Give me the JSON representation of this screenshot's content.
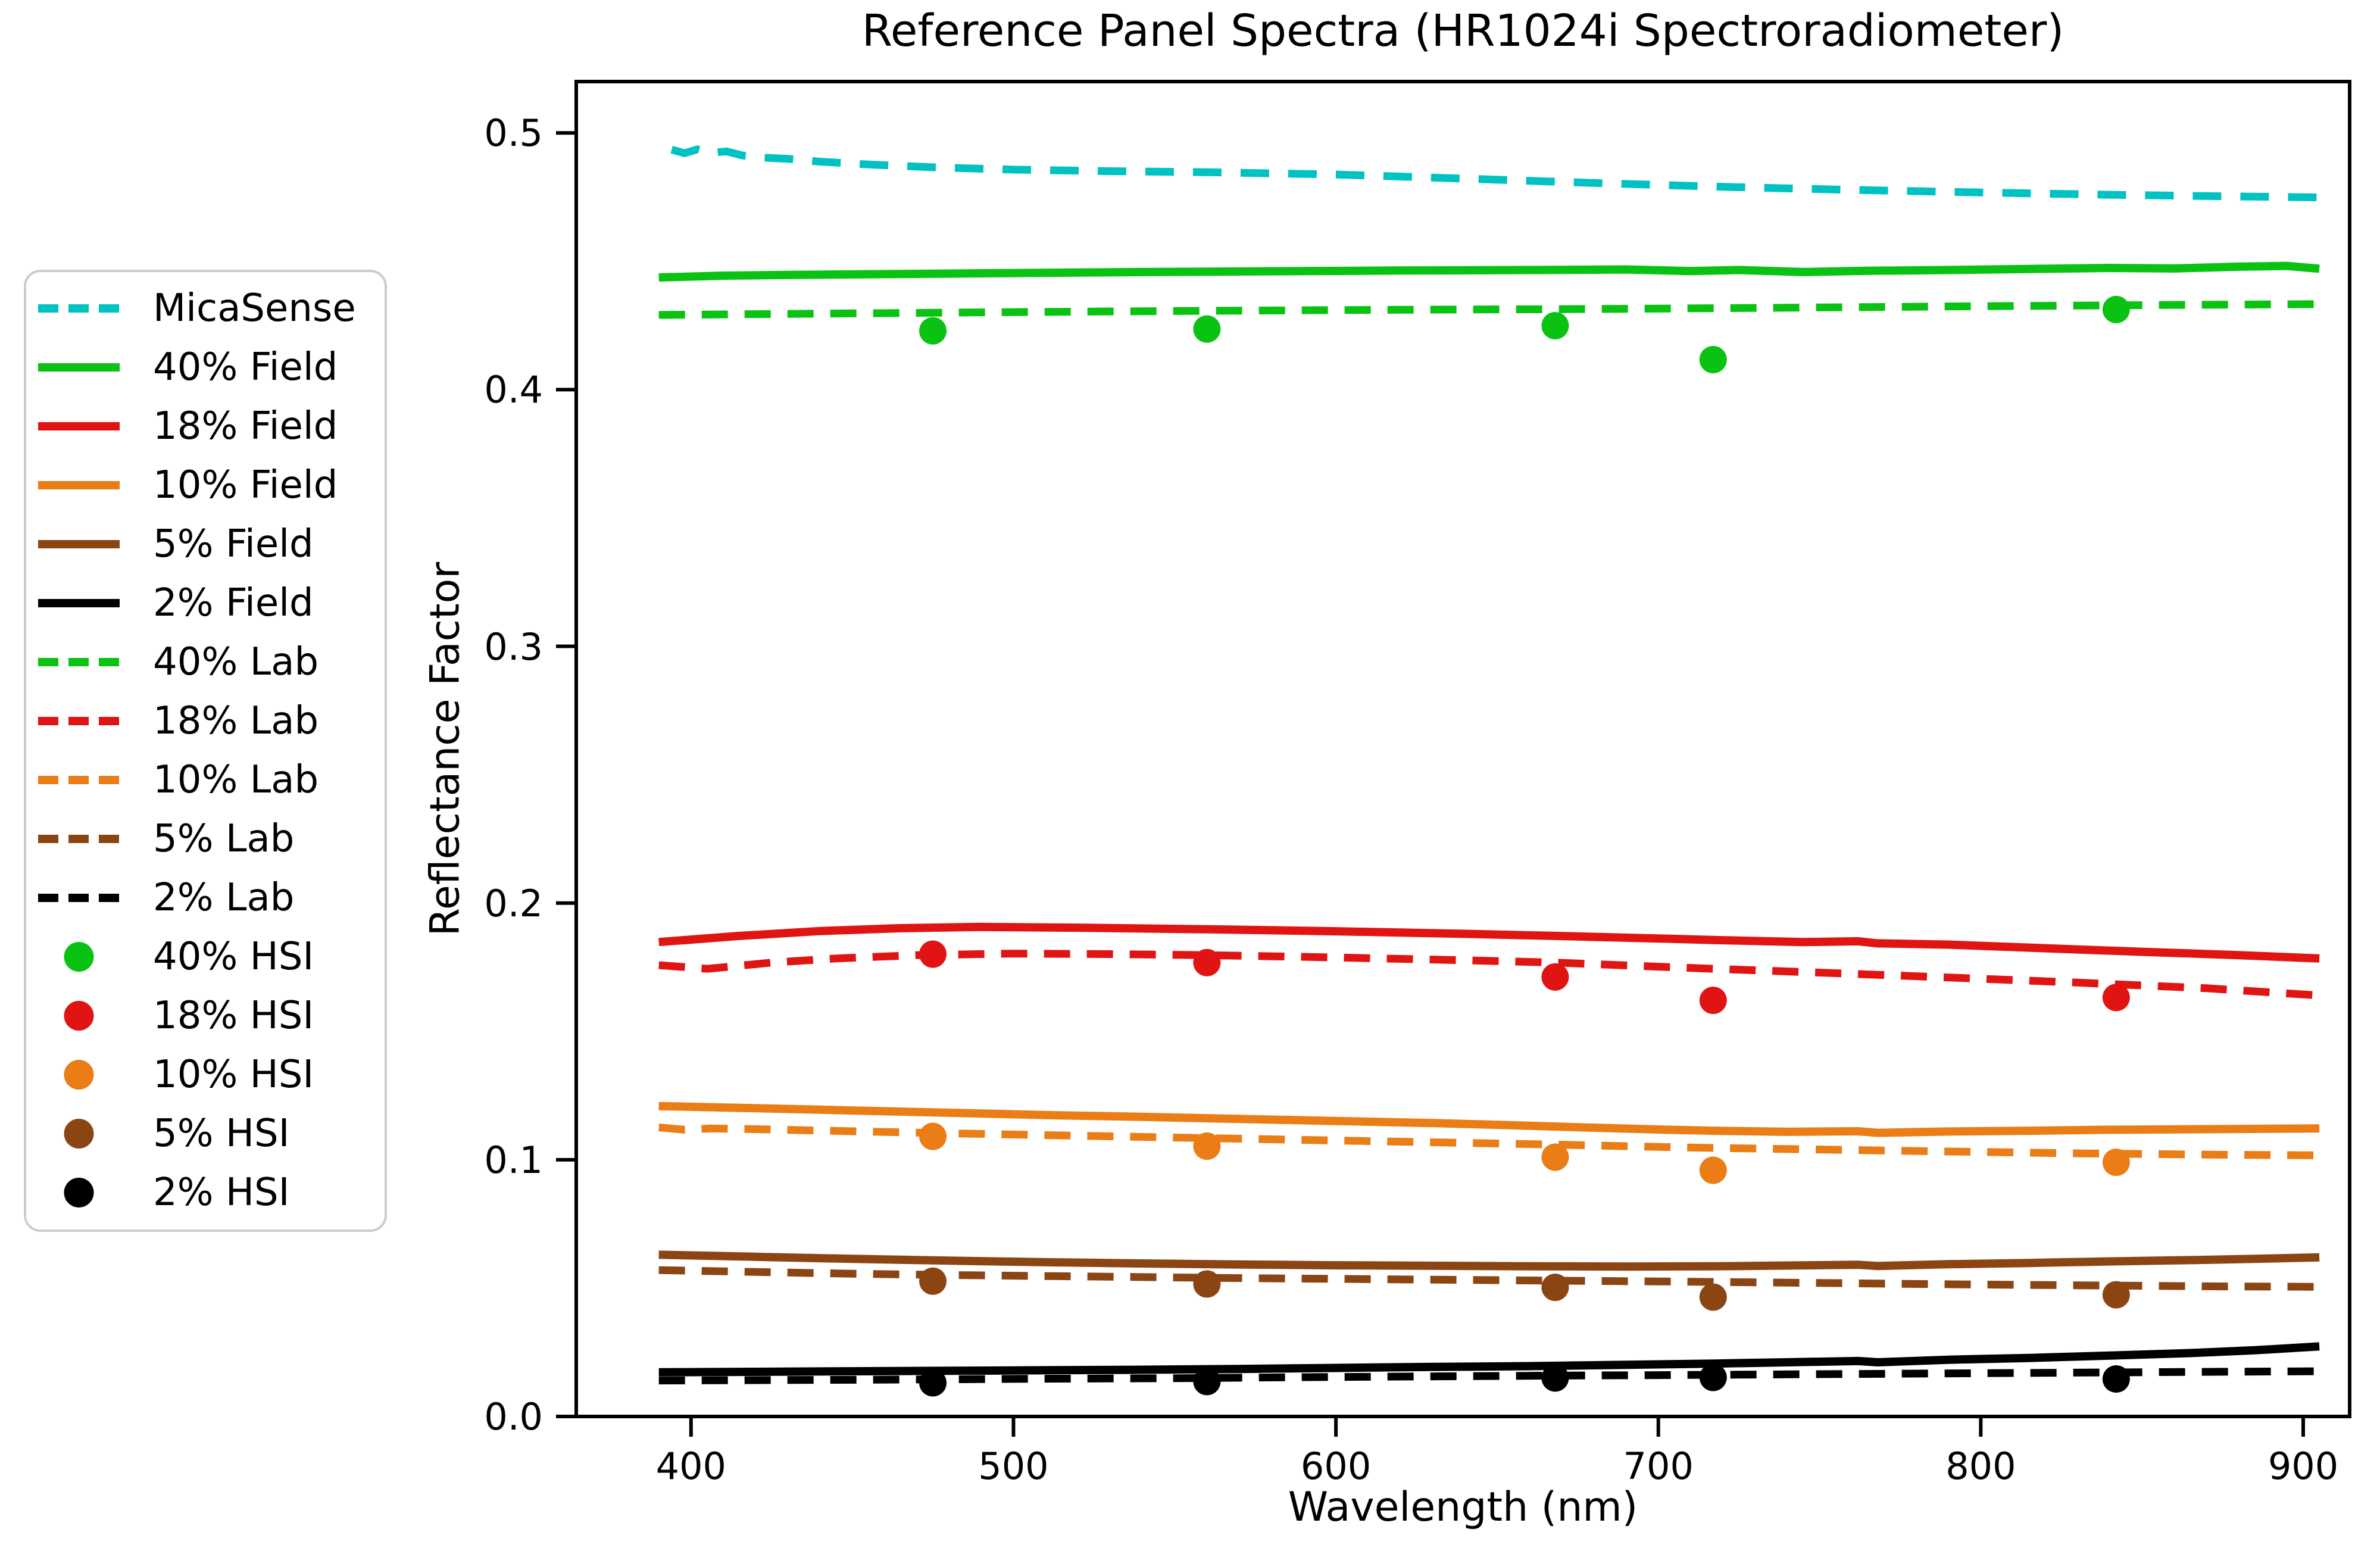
{
  "chart_data": {
    "type": "line",
    "title": "Reference Panel Spectra (HR1024i Spectroradiometer)",
    "xlabel": "Wavelength (nm)",
    "ylabel": "Reflectance Factor",
    "x_range": [
      364.4,
      914.4
    ],
    "y_range": [
      0,
      0.52
    ],
    "grid": false,
    "legend_position": "outside-left",
    "x_axis": {
      "tick_values": [
        400,
        500,
        600,
        700,
        800,
        900
      ],
      "tick_labels": [
        "400",
        "500",
        "600",
        "700",
        "800",
        "900"
      ]
    },
    "y_axis": {
      "tick_values": [
        0.0,
        0.1,
        0.2,
        0.3,
        0.4,
        0.5
      ],
      "tick_labels": [
        "0.0",
        "0.1",
        "0.2",
        "0.3",
        "0.4",
        "0.5"
      ]
    },
    "colors": {
      "micasense_cyan": "#00c2c2",
      "green_40pct": "#0ac212",
      "red_18pct": "#e11414",
      "orange_10pct": "#ea7d15",
      "brown_5pct": "#8b4513",
      "black_2pct": "#000000"
    },
    "series": [
      {
        "name": "MicaSense",
        "style": "dashed",
        "color": "#00c2c2",
        "points": [
          [
            394,
            0.4935
          ],
          [
            398,
            0.4921
          ],
          [
            402,
            0.4936
          ],
          [
            406,
            0.4922
          ],
          [
            411,
            0.4928
          ],
          [
            416,
            0.4912
          ],
          [
            422,
            0.4904
          ],
          [
            430,
            0.4899
          ],
          [
            440,
            0.4888
          ],
          [
            455,
            0.4877
          ],
          [
            475,
            0.4866
          ],
          [
            500,
            0.4857
          ],
          [
            530,
            0.4851
          ],
          [
            560,
            0.4847
          ],
          [
            600,
            0.4838
          ],
          [
            640,
            0.4822
          ],
          [
            680,
            0.4805
          ],
          [
            720,
            0.479
          ],
          [
            760,
            0.4778
          ],
          [
            800,
            0.4768
          ],
          [
            840,
            0.4759
          ],
          [
            870,
            0.4754
          ],
          [
            905,
            0.4749
          ]
        ]
      },
      {
        "name": "40% Field",
        "style": "solid",
        "color": "#0ac212",
        "points": [
          [
            390,
            0.4437
          ],
          [
            410,
            0.4444
          ],
          [
            430,
            0.4447
          ],
          [
            460,
            0.445
          ],
          [
            500,
            0.4454
          ],
          [
            540,
            0.4458
          ],
          [
            580,
            0.4461
          ],
          [
            620,
            0.4464
          ],
          [
            660,
            0.4466
          ],
          [
            690,
            0.4468
          ],
          [
            710,
            0.4462
          ],
          [
            725,
            0.4466
          ],
          [
            745,
            0.4458
          ],
          [
            765,
            0.4463
          ],
          [
            790,
            0.4466
          ],
          [
            815,
            0.447
          ],
          [
            840,
            0.4474
          ],
          [
            860,
            0.4472
          ],
          [
            880,
            0.4479
          ],
          [
            895,
            0.4482
          ],
          [
            905,
            0.4471
          ]
        ]
      },
      {
        "name": "18% Field",
        "style": "solid",
        "color": "#e11414",
        "points": [
          [
            390,
            0.1848
          ],
          [
            415,
            0.1872
          ],
          [
            440,
            0.1891
          ],
          [
            465,
            0.1902
          ],
          [
            490,
            0.1907
          ],
          [
            520,
            0.1904
          ],
          [
            560,
            0.1898
          ],
          [
            600,
            0.189
          ],
          [
            640,
            0.188
          ],
          [
            668,
            0.1872
          ],
          [
            700,
            0.1862
          ],
          [
            717,
            0.1856
          ],
          [
            745,
            0.1848
          ],
          [
            762,
            0.1851
          ],
          [
            768,
            0.1843
          ],
          [
            790,
            0.1838
          ],
          [
            820,
            0.1824
          ],
          [
            850,
            0.181
          ],
          [
            880,
            0.1797
          ],
          [
            905,
            0.1784
          ]
        ]
      },
      {
        "name": "10% Field",
        "style": "solid",
        "color": "#ea7d15",
        "points": [
          [
            390,
            0.1209
          ],
          [
            420,
            0.1201
          ],
          [
            450,
            0.1192
          ],
          [
            480,
            0.1183
          ],
          [
            510,
            0.1174
          ],
          [
            540,
            0.1167
          ],
          [
            570,
            0.1159
          ],
          [
            600,
            0.1151
          ],
          [
            630,
            0.1143
          ],
          [
            656,
            0.1134
          ],
          [
            680,
            0.1125
          ],
          [
            700,
            0.1118
          ],
          [
            717,
            0.1113
          ],
          [
            740,
            0.1109
          ],
          [
            762,
            0.1111
          ],
          [
            768,
            0.1105
          ],
          [
            790,
            0.111
          ],
          [
            815,
            0.1113
          ],
          [
            840,
            0.1117
          ],
          [
            870,
            0.1119
          ],
          [
            905,
            0.1122
          ]
        ]
      },
      {
        "name": "5% Field",
        "style": "solid",
        "color": "#8b4513",
        "points": [
          [
            390,
            0.063
          ],
          [
            420,
            0.0622
          ],
          [
            450,
            0.0614
          ],
          [
            480,
            0.0607
          ],
          [
            510,
            0.0601
          ],
          [
            540,
            0.0596
          ],
          [
            570,
            0.0592
          ],
          [
            600,
            0.0589
          ],
          [
            630,
            0.0587
          ],
          [
            660,
            0.0585
          ],
          [
            690,
            0.0584
          ],
          [
            717,
            0.0585
          ],
          [
            740,
            0.0588
          ],
          [
            762,
            0.0591
          ],
          [
            768,
            0.0586
          ],
          [
            790,
            0.0593
          ],
          [
            815,
            0.0598
          ],
          [
            840,
            0.0604
          ],
          [
            865,
            0.0609
          ],
          [
            885,
            0.0614
          ],
          [
            905,
            0.062
          ]
        ]
      },
      {
        "name": "2% Field",
        "style": "solid",
        "color": "#000000",
        "points": [
          [
            390,
            0.0172
          ],
          [
            420,
            0.0174
          ],
          [
            450,
            0.0176
          ],
          [
            480,
            0.0178
          ],
          [
            510,
            0.018
          ],
          [
            540,
            0.0182
          ],
          [
            570,
            0.0185
          ],
          [
            600,
            0.0189
          ],
          [
            630,
            0.0193
          ],
          [
            660,
            0.0196
          ],
          [
            690,
            0.0201
          ],
          [
            717,
            0.0206
          ],
          [
            740,
            0.0211
          ],
          [
            762,
            0.0216
          ],
          [
            768,
            0.0211
          ],
          [
            790,
            0.0221
          ],
          [
            815,
            0.0228
          ],
          [
            840,
            0.0237
          ],
          [
            865,
            0.0247
          ],
          [
            885,
            0.0258
          ],
          [
            905,
            0.0273
          ]
        ]
      },
      {
        "name": "40% Lab",
        "style": "dashed",
        "color": "#0ac212",
        "points": [
          [
            390,
            0.4291
          ],
          [
            440,
            0.4296
          ],
          [
            500,
            0.4302
          ],
          [
            560,
            0.4307
          ],
          [
            620,
            0.4311
          ],
          [
            680,
            0.4314
          ],
          [
            740,
            0.4319
          ],
          [
            800,
            0.4325
          ],
          [
            860,
            0.433
          ],
          [
            905,
            0.4333
          ]
        ]
      },
      {
        "name": "18% Lab",
        "style": "dashed",
        "color": "#e11414",
        "points": [
          [
            390,
            0.1758
          ],
          [
            405,
            0.1744
          ],
          [
            412,
            0.1752
          ],
          [
            425,
            0.1768
          ],
          [
            445,
            0.1784
          ],
          [
            470,
            0.1797
          ],
          [
            500,
            0.1803
          ],
          [
            530,
            0.1801
          ],
          [
            560,
            0.1797
          ],
          [
            600,
            0.1788
          ],
          [
            640,
            0.1777
          ],
          [
            668,
            0.1768
          ],
          [
            700,
            0.1752
          ],
          [
            717,
            0.1744
          ],
          [
            750,
            0.1729
          ],
          [
            790,
            0.171
          ],
          [
            830,
            0.169
          ],
          [
            870,
            0.1668
          ],
          [
            905,
            0.164
          ]
        ]
      },
      {
        "name": "10% Lab",
        "style": "dashed",
        "color": "#ea7d15",
        "points": [
          [
            390,
            0.1126
          ],
          [
            398,
            0.1117
          ],
          [
            406,
            0.1122
          ],
          [
            420,
            0.1119
          ],
          [
            450,
            0.1111
          ],
          [
            480,
            0.1103
          ],
          [
            510,
            0.1096
          ],
          [
            540,
            0.1089
          ],
          [
            570,
            0.1082
          ],
          [
            600,
            0.1075
          ],
          [
            630,
            0.1068
          ],
          [
            668,
            0.1059
          ],
          [
            700,
            0.105
          ],
          [
            717,
            0.1046
          ],
          [
            750,
            0.104
          ],
          [
            790,
            0.1032
          ],
          [
            830,
            0.1025
          ],
          [
            870,
            0.102
          ],
          [
            905,
            0.1017
          ]
        ]
      },
      {
        "name": "5% Lab",
        "style": "dashed",
        "color": "#8b4513",
        "points": [
          [
            390,
            0.057
          ],
          [
            420,
            0.0563
          ],
          [
            450,
            0.0556
          ],
          [
            480,
            0.0551
          ],
          [
            510,
            0.0547
          ],
          [
            540,
            0.0543
          ],
          [
            570,
            0.0539
          ],
          [
            600,
            0.0536
          ],
          [
            630,
            0.0533
          ],
          [
            668,
            0.0529
          ],
          [
            700,
            0.0526
          ],
          [
            717,
            0.0524
          ],
          [
            750,
            0.052
          ],
          [
            790,
            0.0515
          ],
          [
            830,
            0.0511
          ],
          [
            870,
            0.0507
          ],
          [
            905,
            0.0505
          ]
        ]
      },
      {
        "name": "2% Lab",
        "style": "dashed",
        "color": "#000000",
        "points": [
          [
            390,
            0.014
          ],
          [
            430,
            0.0142
          ],
          [
            470,
            0.0144
          ],
          [
            510,
            0.0147
          ],
          [
            550,
            0.0149
          ],
          [
            590,
            0.0153
          ],
          [
            630,
            0.0156
          ],
          [
            668,
            0.0159
          ],
          [
            700,
            0.0161
          ],
          [
            740,
            0.0164
          ],
          [
            780,
            0.0167
          ],
          [
            820,
            0.017
          ],
          [
            860,
            0.0173
          ],
          [
            905,
            0.0176
          ]
        ]
      },
      {
        "name": "40% HSI",
        "style": "scatter",
        "color": "#0ac212",
        "points": [
          [
            475,
            0.4229
          ],
          [
            560,
            0.4236
          ],
          [
            668,
            0.4249
          ],
          [
            717,
            0.4117
          ],
          [
            842,
            0.4312
          ]
        ]
      },
      {
        "name": "18% HSI",
        "style": "scatter",
        "color": "#e11414",
        "points": [
          [
            475,
            0.1801
          ],
          [
            560,
            0.1768
          ],
          [
            668,
            0.1712
          ],
          [
            717,
            0.1621
          ],
          [
            842,
            0.1632
          ]
        ]
      },
      {
        "name": "10% HSI",
        "style": "scatter",
        "color": "#ea7d15",
        "points": [
          [
            475,
            0.1091
          ],
          [
            560,
            0.1053
          ],
          [
            668,
            0.101
          ],
          [
            717,
            0.0959
          ],
          [
            842,
            0.099
          ]
        ]
      },
      {
        "name": "5% HSI",
        "style": "scatter",
        "color": "#8b4513",
        "points": [
          [
            475,
            0.0527
          ],
          [
            560,
            0.0516
          ],
          [
            668,
            0.0503
          ],
          [
            717,
            0.0465
          ],
          [
            842,
            0.0474
          ]
        ]
      },
      {
        "name": "2% HSI",
        "style": "scatter",
        "color": "#000000",
        "points": [
          [
            475,
            0.0131
          ],
          [
            560,
            0.0136
          ],
          [
            668,
            0.015
          ],
          [
            717,
            0.0152
          ],
          [
            842,
            0.0146
          ]
        ]
      }
    ]
  }
}
